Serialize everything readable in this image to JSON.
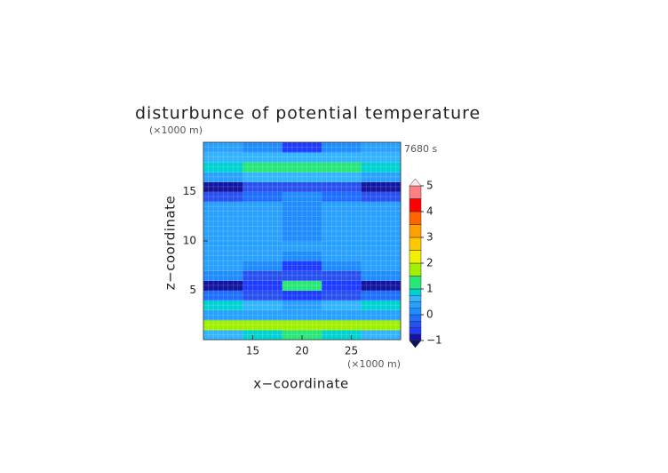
{
  "chart_data": {
    "type": "contour",
    "title": "disturbunce of potential temperature",
    "time_label": "7680 s",
    "x_label": "x−coordinate",
    "x_unit": "(×1000 m)",
    "y_label": "z−coordinate",
    "y_unit": "(×1000 m)",
    "xlim": [
      10,
      30
    ],
    "ylim": [
      0,
      20
    ],
    "xticks": [
      15,
      20,
      25
    ],
    "yticks": [
      5,
      10,
      15
    ],
    "grid": true,
    "x": [
      12,
      16,
      20,
      24,
      28
    ],
    "y": [
      0.5,
      1.5,
      2.5,
      3.5,
      4.5,
      5.5,
      6.5,
      7.5,
      8.5,
      9.5,
      10.5,
      11.5,
      12.5,
      13.5,
      14.5,
      15.5,
      16.5,
      17.5,
      18.5,
      19.5
    ],
    "z": [
      [
        0.6,
        0.8,
        1.0,
        0.8,
        0.6
      ],
      [
        1.6,
        1.8,
        1.9,
        1.8,
        1.6
      ],
      [
        0.3,
        0.3,
        0.3,
        0.3,
        0.3
      ],
      [
        0.9,
        0.6,
        0.4,
        0.6,
        0.9
      ],
      [
        -0.2,
        -0.4,
        -0.6,
        -0.4,
        -0.2
      ],
      [
        -0.8,
        -0.6,
        1.2,
        -0.6,
        -0.8
      ],
      [
        0.1,
        -0.3,
        -0.5,
        -0.3,
        0.1
      ],
      [
        0.3,
        0.1,
        -0.6,
        0.1,
        0.3
      ],
      [
        0.3,
        0.3,
        0.1,
        0.3,
        0.3
      ],
      [
        0.4,
        0.4,
        0.3,
        0.4,
        0.4
      ],
      [
        0.4,
        0.3,
        0.2,
        0.3,
        0.4
      ],
      [
        0.4,
        0.3,
        0.1,
        0.3,
        0.4
      ],
      [
        0.4,
        0.4,
        0.1,
        0.4,
        0.4
      ],
      [
        0.4,
        0.4,
        0.2,
        0.4,
        0.4
      ],
      [
        -0.3,
        -0.1,
        0.2,
        -0.1,
        -0.3
      ],
      [
        -0.8,
        -0.5,
        -0.3,
        -0.5,
        -0.8
      ],
      [
        0.3,
        0.6,
        0.5,
        0.6,
        0.3
      ],
      [
        0.8,
        1.1,
        1.4,
        1.1,
        0.8
      ],
      [
        0.5,
        0.6,
        0.7,
        0.6,
        0.5
      ],
      [
        0.3,
        0.1,
        -0.6,
        0.1,
        0.3
      ]
    ],
    "colorbar": {
      "clim": [
        -1,
        5
      ],
      "levels": [
        -1,
        -0.75,
        -0.5,
        -0.25,
        0,
        0.25,
        0.5,
        0.75,
        1,
        1.5,
        2,
        2.5,
        3,
        3.5,
        4,
        4.5,
        5
      ],
      "colors": [
        "#1414a0",
        "#1e3cff",
        "#2850f0",
        "#1e6eff",
        "#1e8cff",
        "#28a0ff",
        "#32b4ff",
        "#00d2d2",
        "#28e678",
        "#a0f000",
        "#f0f000",
        "#ffc800",
        "#ffa000",
        "#ff6400",
        "#ff0000",
        "#ff8080",
        "#ffb4b4"
      ],
      "ticks": [
        {
          "value": -1,
          "label": "−1"
        },
        0,
        1,
        2,
        3,
        4,
        5
      ]
    }
  }
}
